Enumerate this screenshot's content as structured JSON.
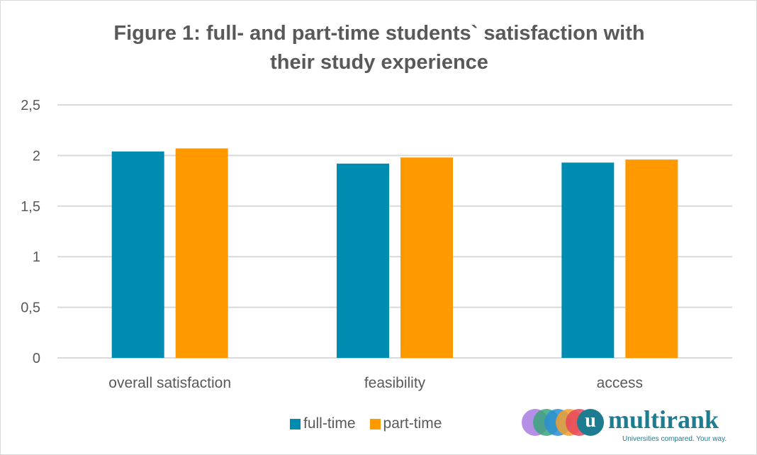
{
  "chart_data": {
    "type": "bar",
    "title": "Figure 1: full- and part-time students` satisfaction with their study experience",
    "title_lines": [
      "Figure 1: full- and part-time students` satisfaction with",
      "their study experience"
    ],
    "categories": [
      "overall satisfaction",
      "feasibility",
      "access"
    ],
    "series": [
      {
        "name": "full-time",
        "values": [
          2.04,
          1.92,
          1.93
        ],
        "color": "#008bb0"
      },
      {
        "name": "part-time",
        "values": [
          2.07,
          1.98,
          1.96
        ],
        "color": "#ff9900"
      }
    ],
    "ylim": [
      0,
      2.5
    ],
    "yticks": [
      "0",
      "0,5",
      "1",
      "1,5",
      "2",
      "2,5"
    ],
    "grid": true,
    "legend": "bottom"
  },
  "logo": {
    "text": "multirank",
    "tagline": "Universities compared. Your way.",
    "letter": "u"
  }
}
